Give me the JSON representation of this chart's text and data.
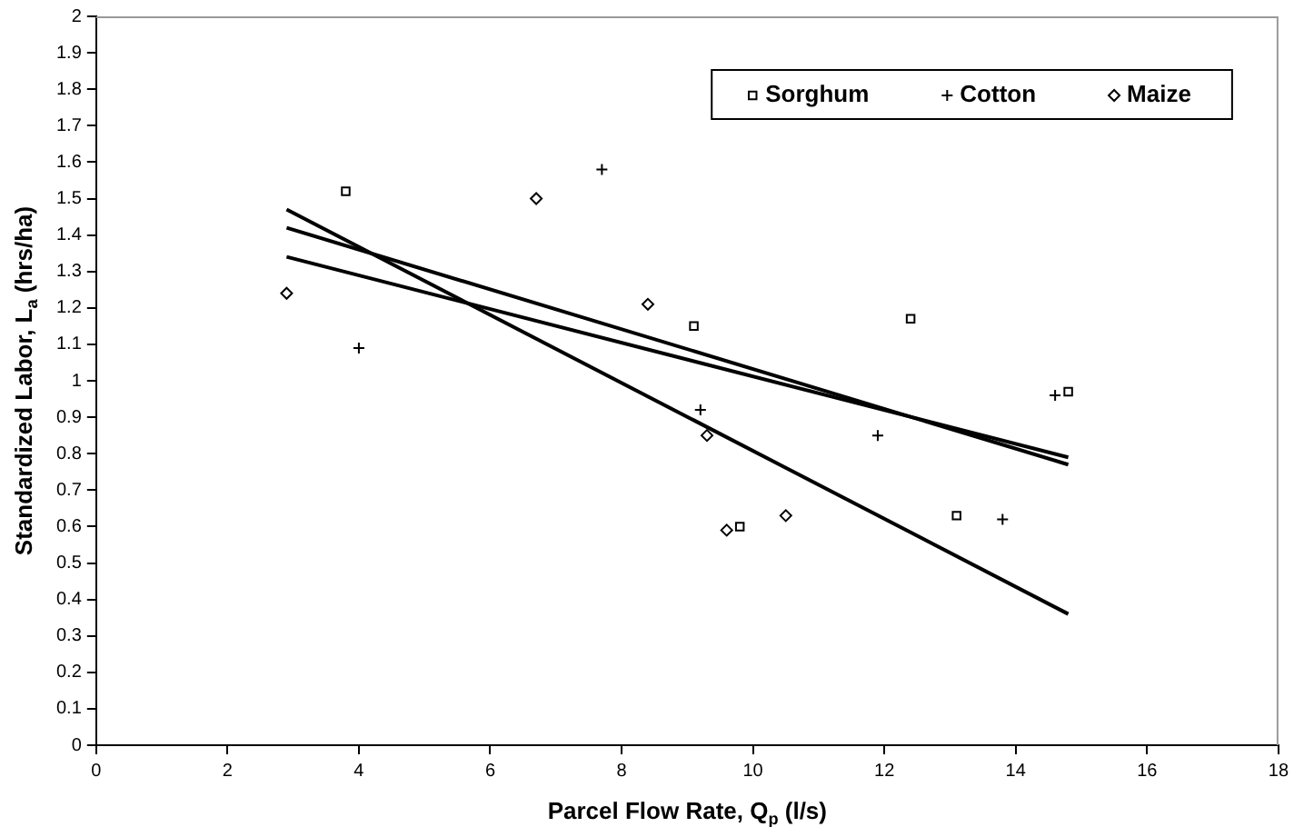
{
  "chart_data": {
    "type": "scatter",
    "xlabel": "Parcel Flow Rate, Q$_{p}$ (l/s)",
    "ylabel": "Standardized Labor, L$_{a}$ (hrs/ha)",
    "xlim": [
      0,
      18
    ],
    "xticks": [
      0,
      2,
      4,
      6,
      8,
      10,
      12,
      14,
      16,
      18
    ],
    "ylim": [
      0,
      2
    ],
    "yticks": [
      0,
      0.1,
      0.2,
      0.3,
      0.4,
      0.5,
      0.6,
      0.7,
      0.8,
      0.9,
      1,
      1.1,
      1.2,
      1.3,
      1.4,
      1.5,
      1.6,
      1.7,
      1.8,
      1.9,
      2
    ],
    "grid": false,
    "legend": "top right",
    "series": [
      {
        "name": "Sorghum",
        "type": "scatter",
        "marker": "square",
        "color": "#000000",
        "x": [
          3.8,
          9.1,
          12.4,
          14.8,
          13.1,
          9.8
        ],
        "values": [
          1.52,
          1.15,
          1.17,
          0.97,
          0.63,
          0.6
        ]
      },
      {
        "name": "Cotton",
        "type": "scatter",
        "marker": "cross",
        "color": "#000000",
        "x": [
          4.0,
          7.7,
          9.2,
          11.9,
          13.8,
          14.6
        ],
        "values": [
          1.09,
          1.58,
          0.92,
          0.85,
          0.62,
          0.96
        ]
      },
      {
        "name": "Maize",
        "type": "scatter",
        "marker": "diamond",
        "color": "#000000",
        "x": [
          2.9,
          6.7,
          8.4,
          9.3,
          9.6,
          10.5
        ],
        "values": [
          1.24,
          1.5,
          1.21,
          0.85,
          0.59,
          0.63
        ]
      },
      {
        "type": "line",
        "marker": "none",
        "line_style": "solid",
        "color": "#000000",
        "x": [
          2.9,
          14.8
        ],
        "values": [
          1.47,
          0.36
        ]
      },
      {
        "type": "line",
        "marker": "none",
        "line_style": "solid",
        "color": "#000000",
        "x": [
          2.9,
          14.8
        ],
        "values": [
          1.42,
          0.77
        ]
      },
      {
        "type": "line",
        "marker": "none",
        "line_style": "solid",
        "color": "#000000",
        "x": [
          2.9,
          14.8
        ],
        "values": [
          1.34,
          0.79
        ]
      }
    ]
  }
}
